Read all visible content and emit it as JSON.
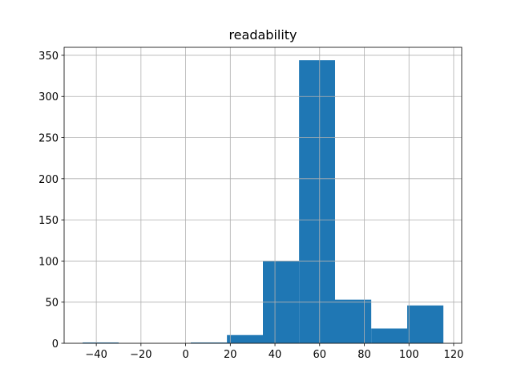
{
  "chart_data": {
    "type": "histogram",
    "title": "readability",
    "bins": [
      -46.1,
      -30.0,
      -13.8,
      2.3,
      18.5,
      34.6,
      50.8,
      66.9,
      83.1,
      99.2,
      115.4
    ],
    "values": [
      1,
      0,
      0,
      1,
      10,
      100,
      344,
      53,
      18,
      46
    ],
    "color": "#1f77b4",
    "xlim": [
      -54.4,
      123.6
    ],
    "xticks": [
      {
        "value": -40,
        "label": "−40"
      },
      {
        "value": -20,
        "label": "−20"
      },
      0,
      20,
      40,
      60,
      80,
      100,
      120
    ],
    "ylim": [
      0,
      359.7
    ],
    "yticks": [
      0,
      50,
      100,
      150,
      200,
      250,
      300,
      350
    ],
    "grid": true
  }
}
